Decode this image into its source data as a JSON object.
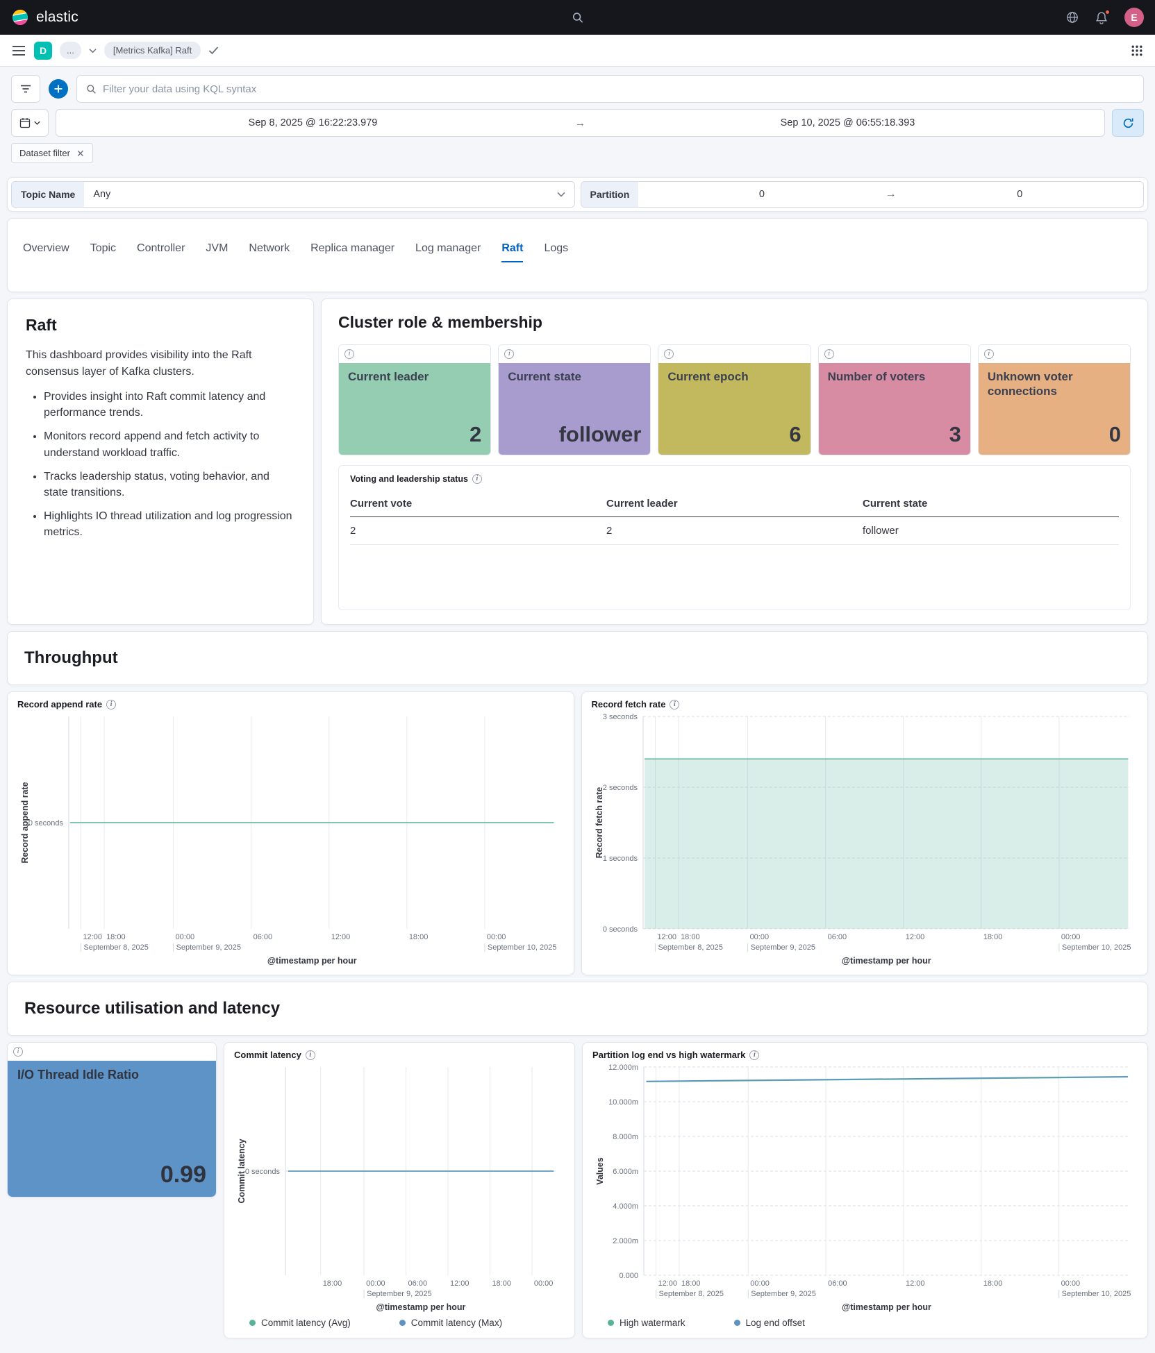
{
  "header": {
    "brand": "elastic",
    "avatar_initial": "E"
  },
  "breadcrumbs": {
    "space_initial": "D",
    "collapsed": "...",
    "current": "[Metrics Kafka] Raft"
  },
  "query_bar": {
    "placeholder": "Filter your data using KQL syntax"
  },
  "time_picker": {
    "start": "Sep 8, 2025 @ 16:22:23.979",
    "end": "Sep 10, 2025 @ 06:55:18.393"
  },
  "filter_pill": "Dataset filter",
  "controls": {
    "topic_label": "Topic Name",
    "topic_value": "Any",
    "partition_label": "Partition",
    "partition_from": "0",
    "partition_to": "0"
  },
  "tabs": {
    "items": [
      "Overview",
      "Topic",
      "Controller",
      "JVM",
      "Network",
      "Replica manager",
      "Log manager",
      "Raft",
      "Logs"
    ],
    "active": "Raft"
  },
  "raft_panel": {
    "title": "Raft",
    "intro": "This dashboard provides visibility into the Raft consensus layer of Kafka clusters.",
    "bullets": [
      "Provides insight into Raft commit latency and performance trends.",
      "Monitors record append and fetch activity to understand workload traffic.",
      "Tracks leadership status, voting behavior, and state transitions.",
      "Highlights IO thread utilization and log progression metrics."
    ]
  },
  "cluster_panel": {
    "title": "Cluster role & membership",
    "metrics": [
      {
        "label": "Current leader",
        "value": "2",
        "color": "#94CDB2"
      },
      {
        "label": "Current state",
        "value": "follower",
        "color": "#A89CCF"
      },
      {
        "label": "Current epoch",
        "value": "6",
        "color": "#C2B95F"
      },
      {
        "label": "Number of voters",
        "value": "3",
        "color": "#D78CA4"
      },
      {
        "label": "Unknown voter connections",
        "value": "0",
        "color": "#E6B083"
      }
    ],
    "table": {
      "title": "Voting and leadership status",
      "columns": [
        "Current vote",
        "Current leader",
        "Current state"
      ],
      "rows": [
        [
          "2",
          "2",
          "follower"
        ]
      ]
    }
  },
  "sections": {
    "throughput": "Throughput",
    "resource": "Resource utilisation and latency"
  },
  "io_tile": {
    "label": "I/O Thread Idle Ratio",
    "value": "0.99",
    "color": "#5E93C8"
  },
  "chart_data": [
    {
      "id": "record_append_rate",
      "type": "line",
      "title": "Record append rate",
      "xlabel": "@timestamp per hour",
      "ylabel": "Record append rate",
      "ylim": [
        -1,
        1
      ],
      "y_ticks": [
        {
          "v": 0,
          "label": "0 seconds"
        }
      ],
      "x_ticks": [
        {
          "pos": 0.025,
          "label": "12:00",
          "sub": "September 8, 2025"
        },
        {
          "pos": 0.073,
          "label": "18:00"
        },
        {
          "pos": 0.215,
          "label": "00:00",
          "sub": "September 9, 2025"
        },
        {
          "pos": 0.375,
          "label": "06:00"
        },
        {
          "pos": 0.535,
          "label": "12:00"
        },
        {
          "pos": 0.695,
          "label": "18:00"
        },
        {
          "pos": 0.855,
          "label": "00:00",
          "sub": "September 10, 2025"
        }
      ],
      "series": [
        {
          "name": "Record append rate",
          "kind": "line",
          "color": "#54B399",
          "points": [
            [
              0.003,
              0
            ],
            [
              0.997,
              0
            ]
          ]
        }
      ]
    },
    {
      "id": "record_fetch_rate",
      "type": "area",
      "title": "Record fetch rate",
      "xlabel": "@timestamp per hour",
      "ylabel": "Record fetch rate",
      "ylim": [
        0,
        3
      ],
      "y_ticks": [
        {
          "v": 0,
          "label": "0 seconds"
        },
        {
          "v": 1,
          "label": "1 seconds"
        },
        {
          "v": 2,
          "label": "2 seconds"
        },
        {
          "v": 3,
          "label": "3 seconds"
        }
      ],
      "x_ticks": [
        {
          "pos": 0.025,
          "label": "12:00",
          "sub": "September 8, 2025"
        },
        {
          "pos": 0.073,
          "label": "18:00"
        },
        {
          "pos": 0.215,
          "label": "00:00",
          "sub": "September 9, 2025"
        },
        {
          "pos": 0.375,
          "label": "06:00"
        },
        {
          "pos": 0.535,
          "label": "12:00"
        },
        {
          "pos": 0.695,
          "label": "18:00"
        },
        {
          "pos": 0.855,
          "label": "00:00",
          "sub": "September 10, 2025"
        }
      ],
      "series": [
        {
          "name": "Record fetch rate",
          "kind": "area",
          "color": "#54B399",
          "fill": "rgba(84,179,153,0.22)",
          "points": [
            [
              0.003,
              2.4
            ],
            [
              0.997,
              2.4
            ]
          ]
        }
      ]
    },
    {
      "id": "commit_latency",
      "type": "line",
      "title": "Commit latency",
      "xlabel": "@timestamp per hour",
      "ylabel": "Commit latency",
      "ylim": [
        -1,
        1
      ],
      "y_ticks": [
        {
          "v": 0,
          "label": "0 seconds"
        }
      ],
      "x_ticks": [
        {
          "pos": 0.13,
          "label": "18:00"
        },
        {
          "pos": 0.29,
          "label": "00:00",
          "sub": "September 9, 2025"
        },
        {
          "pos": 0.445,
          "label": "06:00"
        },
        {
          "pos": 0.6,
          "label": "12:00"
        },
        {
          "pos": 0.755,
          "label": "18:00"
        },
        {
          "pos": 0.91,
          "label": "00:00"
        }
      ],
      "series": [
        {
          "name": "Commit latency (Avg)",
          "kind": "line",
          "color": "#54B399",
          "points": [
            [
              0.01,
              0
            ],
            [
              0.99,
              0
            ]
          ]
        },
        {
          "name": "Commit latency (Max)",
          "kind": "line",
          "color": "#6092C0",
          "points": [
            [
              0.01,
              0
            ],
            [
              0.99,
              0
            ]
          ]
        }
      ]
    },
    {
      "id": "partition_log_vs_watermark",
      "type": "line",
      "title": "Partition log end vs high watermark",
      "xlabel": "@timestamp per hour",
      "ylabel": "Values",
      "ylim": [
        0,
        12
      ],
      "y_ticks": [
        {
          "v": 0,
          "label": "0.000"
        },
        {
          "v": 2,
          "label": "2.000m"
        },
        {
          "v": 4,
          "label": "4.000m"
        },
        {
          "v": 6,
          "label": "6.000m"
        },
        {
          "v": 8,
          "label": "8.000m"
        },
        {
          "v": 10,
          "label": "10.000m"
        },
        {
          "v": 12,
          "label": "12.000m"
        }
      ],
      "x_ticks": [
        {
          "pos": 0.025,
          "label": "12:00",
          "sub": "September 8, 2025"
        },
        {
          "pos": 0.073,
          "label": "18:00"
        },
        {
          "pos": 0.215,
          "label": "00:00",
          "sub": "September 9, 2025"
        },
        {
          "pos": 0.375,
          "label": "06:00"
        },
        {
          "pos": 0.535,
          "label": "12:00"
        },
        {
          "pos": 0.695,
          "label": "18:00"
        },
        {
          "pos": 0.855,
          "label": "00:00",
          "sub": "September 10, 2025"
        }
      ],
      "series": [
        {
          "name": "High watermark",
          "kind": "line",
          "color": "#54B399",
          "points": [
            [
              0.005,
              11.15
            ],
            [
              0.997,
              11.42
            ]
          ]
        },
        {
          "name": "Log end offset",
          "kind": "line",
          "color": "#6092C0",
          "points": [
            [
              0.005,
              11.18
            ],
            [
              0.997,
              11.45
            ]
          ]
        }
      ]
    }
  ]
}
